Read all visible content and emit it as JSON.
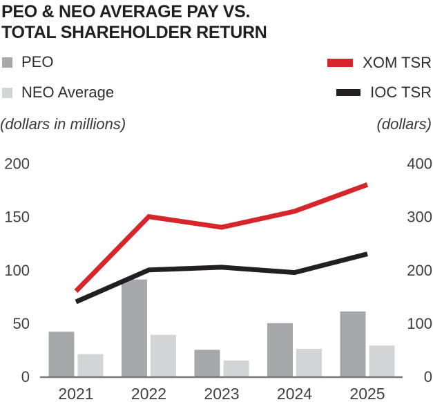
{
  "title": {
    "line1": "PEO & NEO AVERAGE PAY VS.",
    "line2": "TOTAL SHAREHOLDER RETURN"
  },
  "legend": {
    "peo": {
      "label": "PEO",
      "color": "#a6a8ab"
    },
    "neo": {
      "label": "NEO Average",
      "color": "#d3d4d6"
    },
    "xom": {
      "label": "XOM TSR",
      "color": "#d7262b"
    },
    "ioc": {
      "label": "IOC TSR",
      "color": "#231f20"
    }
  },
  "axis_units": {
    "left": "(dollars in millions)",
    "right": "(dollars)"
  },
  "chart_data": {
    "type": "bar+line combo",
    "categories": [
      "2021",
      "2022",
      "2023",
      "2024",
      "2025"
    ],
    "bar_series": [
      {
        "name": "PEO",
        "axis": "left",
        "color": "#a6a8ab",
        "values": [
          42,
          91,
          25,
          50,
          61
        ]
      },
      {
        "name": "NEO Average",
        "axis": "left",
        "color": "#d3d4d6",
        "values": [
          21,
          39,
          15,
          26,
          29
        ]
      }
    ],
    "line_series": [
      {
        "name": "IOC TSR",
        "axis": "right",
        "color": "#231f20",
        "values": [
          140,
          200,
          205,
          195,
          230
        ]
      },
      {
        "name": "XOM TSR",
        "axis": "right",
        "color": "#d7262b",
        "values": [
          160,
          300,
          280,
          310,
          360
        ]
      }
    ],
    "left_axis": {
      "title": "(dollars in millions)",
      "ticks": [
        0,
        50,
        100,
        150,
        200
      ],
      "range": [
        0,
        200
      ]
    },
    "right_axis": {
      "title": "(dollars)",
      "ticks": [
        0,
        100,
        200,
        300,
        400
      ],
      "range": [
        0,
        400
      ]
    },
    "grid": false,
    "legend_position": "top",
    "axis_line_color": "#77787b"
  }
}
